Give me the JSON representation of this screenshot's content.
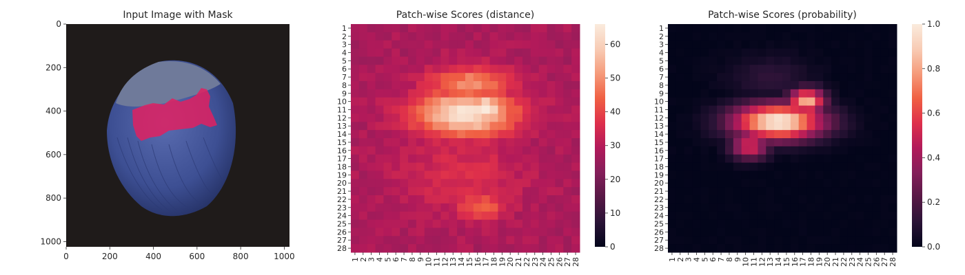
{
  "colors": {
    "rocket": [
      "#03051A",
      "#2A1336",
      "#571845",
      "#841E5A",
      "#B21A5A",
      "#DE2F4B",
      "#F06043",
      "#F59B7B",
      "#F8CCB5",
      "#FAEBDD"
    ],
    "background": "#1f1b1a",
    "nut_blue": "#3d4f93",
    "mask_pink": "#e02060"
  },
  "chart_data": [
    {
      "type": "image",
      "title": "Input Image with Mask",
      "xlim": [
        0,
        1024
      ],
      "ylim": [
        1024,
        0
      ],
      "xticks": [
        "0",
        "200",
        "400",
        "600",
        "800",
        "1000"
      ],
      "yticks": [
        "0",
        "200",
        "400",
        "600",
        "800",
        "1000"
      ]
    },
    {
      "type": "heatmap",
      "title": "Patch-wise Scores (distance)",
      "rows": 28,
      "cols": 28,
      "xticks": [
        "1",
        "2",
        "3",
        "4",
        "5",
        "6",
        "7",
        "8",
        "9",
        "10",
        "11",
        "12",
        "13",
        "14",
        "15",
        "16",
        "17",
        "18",
        "19",
        "20",
        "21",
        "22",
        "23",
        "24",
        "25",
        "26",
        "27",
        "28"
      ],
      "yticks": [
        "1",
        "2",
        "3",
        "4",
        "5",
        "6",
        "7",
        "8",
        "9",
        "10",
        "11",
        "12",
        "13",
        "14",
        "15",
        "16",
        "17",
        "18",
        "19",
        "20",
        "21",
        "22",
        "23",
        "24",
        "25",
        "26",
        "27",
        "28"
      ],
      "colorbar": {
        "min": 0,
        "max": 66,
        "ticks": [
          "0",
          "10",
          "20",
          "30",
          "40",
          "50",
          "60"
        ]
      },
      "value_range": [
        0,
        66
      ],
      "base_value": 28,
      "hotspots": [
        {
          "row": 11.5,
          "col": 14.5,
          "value": 64,
          "spread_r": 2.2,
          "spread_c": 5.0
        },
        {
          "row": 11.0,
          "col": 17.0,
          "value": 66,
          "spread_r": 1.5,
          "spread_c": 1.6
        },
        {
          "row": 8.0,
          "col": 15.0,
          "value": 50,
          "spread_r": 1.8,
          "spread_c": 4.0
        },
        {
          "row": 22.8,
          "col": 16.5,
          "value": 44,
          "spread_r": 1.3,
          "spread_c": 2.5
        },
        {
          "row": 19.0,
          "col": 14.0,
          "value": 36,
          "spread_r": 4.0,
          "spread_c": 6.0
        }
      ]
    },
    {
      "type": "heatmap",
      "title": "Patch-wise Scores (probability)",
      "rows": 28,
      "cols": 28,
      "xticks": [
        "1",
        "2",
        "3",
        "4",
        "5",
        "6",
        "7",
        "8",
        "9",
        "10",
        "11",
        "12",
        "13",
        "14",
        "15",
        "16",
        "17",
        "18",
        "19",
        "20",
        "21",
        "22",
        "23",
        "24",
        "25",
        "26",
        "27",
        "28"
      ],
      "yticks": [
        "1",
        "2",
        "3",
        "4",
        "5",
        "6",
        "7",
        "8",
        "9",
        "10",
        "11",
        "12",
        "13",
        "14",
        "15",
        "16",
        "17",
        "18",
        "19",
        "20",
        "21",
        "22",
        "23",
        "24",
        "25",
        "26",
        "27",
        "28"
      ],
      "colorbar": {
        "min": 0.0,
        "max": 1.0,
        "ticks": [
          "0.0",
          "0.2",
          "0.4",
          "0.6",
          "0.8",
          "1.0"
        ]
      },
      "value_range": [
        0.0,
        1.0
      ],
      "base_value": 0.0,
      "hotspots": [
        {
          "row": 12.5,
          "col": 14.0,
          "value": 1.0,
          "spread_r": 1.7,
          "spread_c": 4.3
        },
        {
          "row": 10.0,
          "col": 17.5,
          "value": 0.85,
          "spread_r": 1.2,
          "spread_c": 1.7
        },
        {
          "row": 15.5,
          "col": 10.5,
          "value": 0.55,
          "spread_r": 1.2,
          "spread_c": 1.8
        },
        {
          "row": 7.0,
          "col": 13.0,
          "value": 0.12,
          "spread_r": 2.0,
          "spread_c": 4.0
        }
      ]
    }
  ]
}
